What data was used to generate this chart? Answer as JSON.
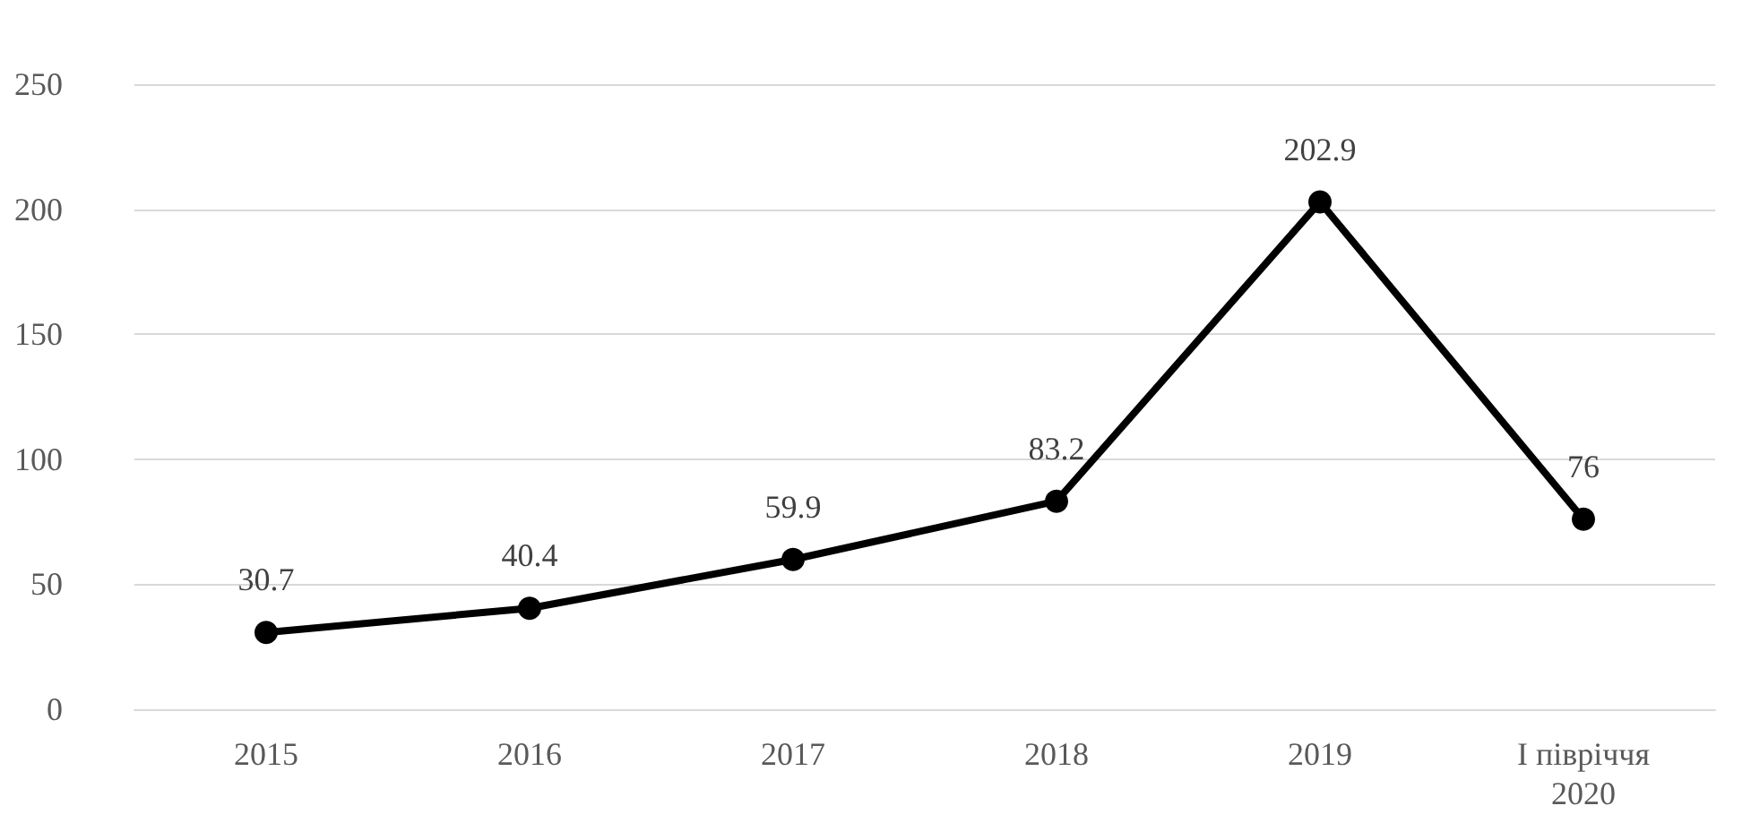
{
  "chart_data": {
    "type": "line",
    "categories": [
      "2015",
      "2016",
      "2017",
      "2018",
      "2019",
      "І півріччя 2020"
    ],
    "values": [
      30.7,
      40.4,
      59.9,
      83.2,
      202.9,
      76
    ],
    "color": "#000000",
    "ylim": [
      0,
      250
    ],
    "yticks": [
      0,
      50,
      100,
      150,
      200,
      250
    ],
    "grid": "y",
    "data_labels": true,
    "marker": "circle",
    "line_style": "solid"
  }
}
